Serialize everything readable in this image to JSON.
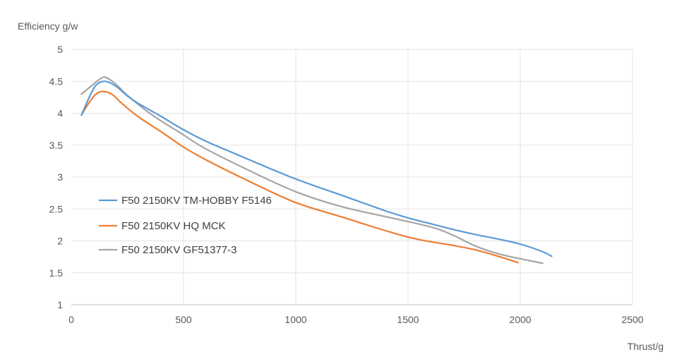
{
  "chart_data": {
    "type": "line",
    "ylabel": "Efficiency g/w",
    "xlabel": "Thrust/g",
    "xlim": [
      0,
      2500
    ],
    "ylim": [
      1,
      5
    ],
    "xticks": [
      0,
      500,
      1000,
      1500,
      2000,
      2500
    ],
    "yticks": [
      1,
      1.5,
      2,
      2.5,
      3,
      3.5,
      4,
      4.5,
      5
    ],
    "xtick_labels": [
      "0",
      "500",
      "1000",
      "1500",
      "2000",
      "2500"
    ],
    "ytick_labels": [
      "1",
      "1.5",
      "2",
      "2.5",
      "3",
      "3.5",
      "4",
      "4.5",
      "5"
    ],
    "grid": true,
    "legend_position": "left-middle",
    "series": [
      {
        "name": "F50 2150KV TM-HOBBY F5146",
        "color": "#5B9BD5",
        "points": [
          [
            45,
            3.97
          ],
          [
            80,
            4.25
          ],
          [
            110,
            4.44
          ],
          [
            150,
            4.5
          ],
          [
            200,
            4.42
          ],
          [
            250,
            4.27
          ],
          [
            300,
            4.15
          ],
          [
            400,
            3.95
          ],
          [
            500,
            3.74
          ],
          [
            600,
            3.56
          ],
          [
            700,
            3.41
          ],
          [
            800,
            3.26
          ],
          [
            1000,
            2.97
          ],
          [
            1200,
            2.72
          ],
          [
            1400,
            2.47
          ],
          [
            1500,
            2.36
          ],
          [
            1600,
            2.27
          ],
          [
            1700,
            2.18
          ],
          [
            1800,
            2.1
          ],
          [
            1900,
            2.03
          ],
          [
            2000,
            1.95
          ],
          [
            2100,
            1.83
          ],
          [
            2140,
            1.76
          ]
        ]
      },
      {
        "name": "F50 2150KV HQ MCK",
        "color": "#ED7D31",
        "points": [
          [
            45,
            3.97
          ],
          [
            80,
            4.17
          ],
          [
            110,
            4.3
          ],
          [
            140,
            4.34
          ],
          [
            180,
            4.3
          ],
          [
            230,
            4.14
          ],
          [
            300,
            3.94
          ],
          [
            400,
            3.71
          ],
          [
            500,
            3.47
          ],
          [
            600,
            3.27
          ],
          [
            800,
            2.92
          ],
          [
            1000,
            2.6
          ],
          [
            1200,
            2.38
          ],
          [
            1500,
            2.06
          ],
          [
            1700,
            1.93
          ],
          [
            1800,
            1.86
          ],
          [
            1900,
            1.76
          ],
          [
            1990,
            1.66
          ]
        ]
      },
      {
        "name": "F50 2150KV GF51377-3",
        "color": "#A5A5A5",
        "points": [
          [
            45,
            4.3
          ],
          [
            90,
            4.43
          ],
          [
            130,
            4.54
          ],
          [
            155,
            4.56
          ],
          [
            200,
            4.45
          ],
          [
            250,
            4.28
          ],
          [
            330,
            4.05
          ],
          [
            400,
            3.88
          ],
          [
            500,
            3.66
          ],
          [
            600,
            3.44
          ],
          [
            800,
            3.09
          ],
          [
            1000,
            2.77
          ],
          [
            1200,
            2.54
          ],
          [
            1400,
            2.38
          ],
          [
            1600,
            2.22
          ],
          [
            1700,
            2.09
          ],
          [
            1800,
            1.92
          ],
          [
            1900,
            1.8
          ],
          [
            2000,
            1.72
          ],
          [
            2100,
            1.65
          ]
        ]
      }
    ]
  }
}
